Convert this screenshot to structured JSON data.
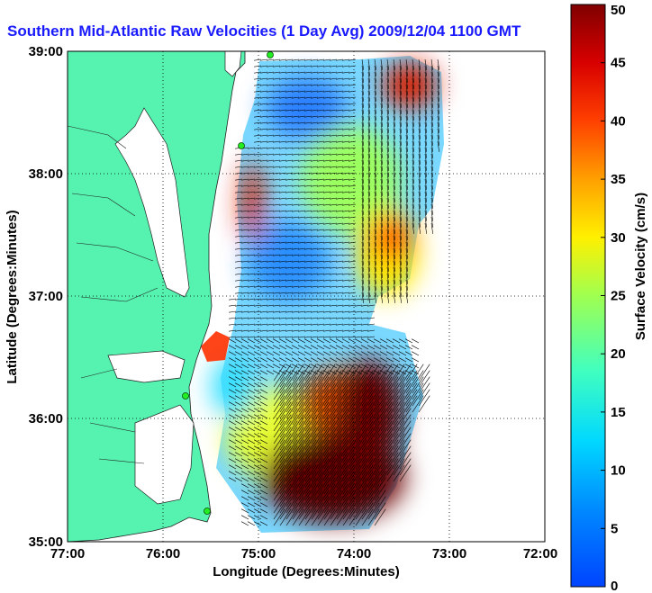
{
  "title": "Southern Mid-Atlantic Raw Velocities (1 Day Avg) 2009/12/04 1100 GMT",
  "xlabel": "Longitude (Degrees:Minutes)",
  "ylabel": "Latitude (Degrees:Minutes)",
  "colorbar": {
    "label": "Surface Velocity (cm/s)",
    "min": 0,
    "max": 50,
    "ticks": [
      "0",
      "5",
      "10",
      "15",
      "20",
      "25",
      "30",
      "35",
      "40",
      "45",
      "50"
    ]
  },
  "x_ticks": [
    "77:00",
    "76:00",
    "75:00",
    "74:00",
    "73:00",
    "72:00"
  ],
  "y_ticks": [
    "39:00",
    "38:00",
    "37:00",
    "36:00",
    "35:00"
  ],
  "colors": {
    "land": "#55f2b0",
    "ocean": "#ffffff",
    "title": "#1a1aff",
    "station": "#22ee22"
  },
  "chart_data": {
    "type": "heatmap",
    "title": "Southern Mid-Atlantic Raw Velocities (1 Day Avg) 2009/12/04 1100 GMT",
    "xlabel": "Longitude (Degrees:Minutes)",
    "ylabel": "Latitude (Degrees:Minutes)",
    "xlim": [
      -77,
      -72
    ],
    "ylim": [
      35,
      39
    ],
    "grid": true,
    "colorbar_range": [
      0,
      50
    ],
    "regions": [
      {
        "lon": -74.3,
        "lat": 35.5,
        "speed_cm_s": 50
      },
      {
        "lon": -74.7,
        "lat": 37.2,
        "speed_cm_s": 7
      },
      {
        "lon": -74.6,
        "lat": 38.6,
        "speed_cm_s": 8
      },
      {
        "lon": -73.5,
        "lat": 38.7,
        "speed_cm_s": 45
      },
      {
        "lon": -73.7,
        "lat": 37.5,
        "speed_cm_s": 38
      },
      {
        "lon": -75.1,
        "lat": 37.8,
        "speed_cm_s": 45
      },
      {
        "lon": -74.5,
        "lat": 36.1,
        "speed_cm_s": 35
      }
    ]
  }
}
